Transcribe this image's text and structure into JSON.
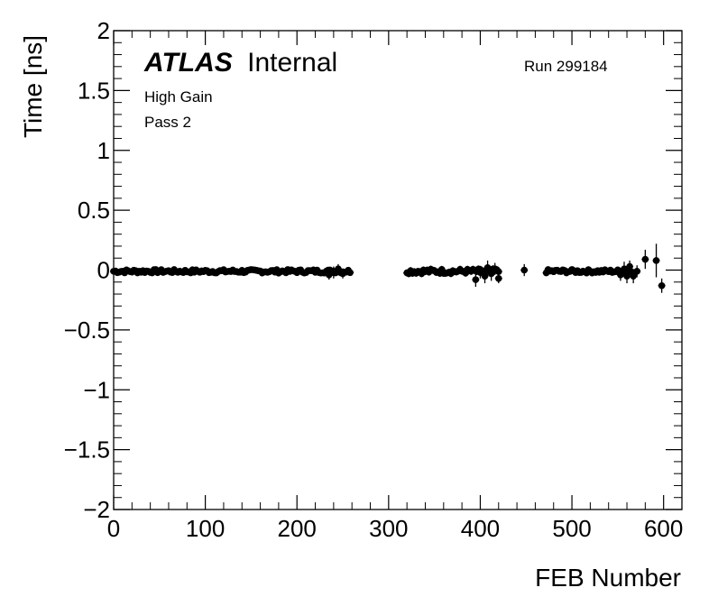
{
  "chart_data": {
    "type": "scatter",
    "title": "",
    "xlabel": "FEB Number",
    "ylabel": "Time [ns]",
    "xlim": [
      0,
      620
    ],
    "ylim": [
      -2,
      2
    ],
    "x_ticks": [
      0,
      100,
      200,
      300,
      400,
      500,
      600
    ],
    "x_tick_labels": [
      "0",
      "100",
      "200",
      "300",
      "400",
      "500",
      "600"
    ],
    "y_ticks": [
      -2,
      -1.5,
      -1,
      -0.5,
      0,
      0.5,
      1,
      1.5,
      2
    ],
    "y_tick_labels": [
      "−2",
      "−1.5",
      "−1",
      "−0.5",
      "0",
      "0.5",
      "1",
      "1.5",
      "2"
    ],
    "grid": false,
    "legend": "none",
    "marker_color": "#000000",
    "annotations": {
      "experiment": "ATLAS",
      "status": "Internal",
      "run": "Run 299184",
      "gain": "High Gain",
      "pass": "Pass 2"
    },
    "segments": [
      {
        "start": 0,
        "end": 258,
        "y": -0.01,
        "jitter": 0.015,
        "err": 0.02
      },
      {
        "start": 320,
        "end": 420,
        "y": -0.01,
        "jitter": 0.02,
        "err": 0.03
      },
      {
        "start": 472,
        "end": 565,
        "y": -0.01,
        "jitter": 0.015,
        "err": 0.02
      }
    ],
    "points": [
      {
        "x": 235,
        "y": -0.04,
        "err": 0.04
      },
      {
        "x": 240,
        "y": -0.02,
        "err": 0.05
      },
      {
        "x": 245,
        "y": 0.01,
        "err": 0.04
      },
      {
        "x": 250,
        "y": -0.03,
        "err": 0.04
      },
      {
        "x": 395,
        "y": -0.08,
        "err": 0.06
      },
      {
        "x": 400,
        "y": -0.02,
        "err": 0.05
      },
      {
        "x": 405,
        "y": -0.05,
        "err": 0.06
      },
      {
        "x": 408,
        "y": 0.02,
        "err": 0.06
      },
      {
        "x": 412,
        "y": -0.03,
        "err": 0.06
      },
      {
        "x": 416,
        "y": 0.01,
        "err": 0.05
      },
      {
        "x": 420,
        "y": -0.07,
        "err": 0.04
      },
      {
        "x": 448,
        "y": 0.0,
        "err": 0.05
      },
      {
        "x": 553,
        "y": -0.04,
        "err": 0.05
      },
      {
        "x": 557,
        "y": 0.01,
        "err": 0.06
      },
      {
        "x": 560,
        "y": -0.05,
        "err": 0.06
      },
      {
        "x": 563,
        "y": 0.03,
        "err": 0.05
      },
      {
        "x": 567,
        "y": -0.05,
        "err": 0.06
      },
      {
        "x": 571,
        "y": -0.01,
        "err": 0.05
      },
      {
        "x": 580,
        "y": 0.09,
        "err": 0.08
      },
      {
        "x": 592,
        "y": 0.08,
        "err": 0.14
      },
      {
        "x": 598,
        "y": -0.13,
        "err": 0.06
      }
    ]
  }
}
